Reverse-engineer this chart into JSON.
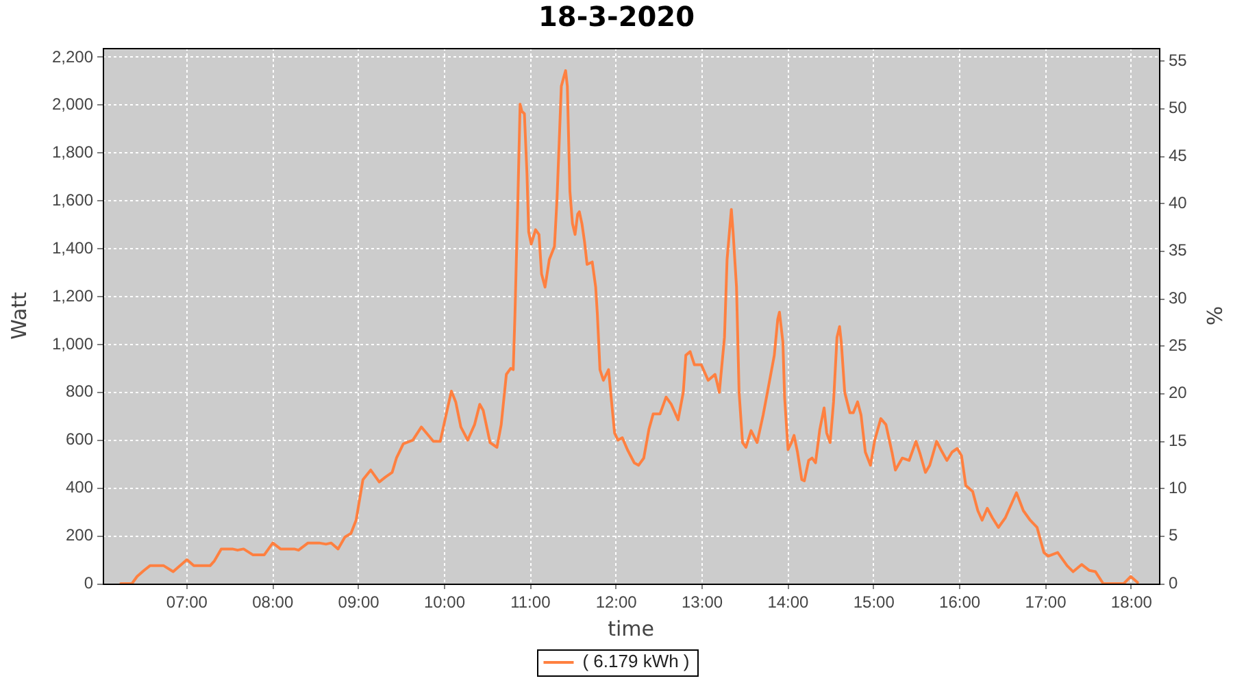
{
  "chart_data": {
    "type": "line",
    "title": "18-3-2020",
    "xlabel": "time",
    "ylabel": "Watt",
    "y2label": "%",
    "x": [
      6.23,
      6.36,
      6.42,
      6.5,
      6.57,
      6.73,
      6.84,
      6.92,
      7.0,
      7.08,
      7.27,
      7.32,
      7.4,
      7.53,
      7.59,
      7.66,
      7.77,
      7.9,
      8.0,
      8.09,
      8.25,
      8.3,
      8.41,
      8.54,
      8.62,
      8.68,
      8.76,
      8.84,
      8.91,
      8.97,
      9.05,
      9.14,
      9.24,
      9.31,
      9.39,
      9.44,
      9.52,
      9.63,
      9.73,
      9.87,
      9.95,
      10.03,
      10.08,
      10.13,
      10.19,
      10.27,
      10.35,
      10.41,
      10.45,
      10.53,
      10.61,
      10.66,
      10.72,
      10.77,
      10.8,
      10.82,
      10.85,
      10.88,
      10.9,
      10.93,
      10.96,
      10.98,
      11.01,
      11.06,
      11.1,
      11.13,
      11.17,
      11.22,
      11.28,
      11.31,
      11.36,
      11.39,
      11.41,
      11.43,
      11.46,
      11.49,
      11.52,
      11.55,
      11.57,
      11.6,
      11.63,
      11.66,
      11.72,
      11.76,
      11.78,
      11.81,
      11.85,
      11.91,
      11.94,
      11.98,
      12.02,
      12.07,
      12.13,
      12.21,
      12.26,
      12.32,
      12.38,
      12.43,
      12.51,
      12.58,
      12.64,
      12.72,
      12.78,
      12.81,
      12.86,
      12.91,
      12.99,
      13.07,
      13.15,
      13.2,
      13.26,
      13.29,
      13.34,
      13.36,
      13.4,
      13.43,
      13.47,
      13.51,
      13.57,
      13.64,
      13.71,
      13.76,
      13.84,
      13.88,
      13.9,
      13.94,
      13.96,
      14.0,
      14.04,
      14.07,
      14.11,
      14.16,
      14.19,
      14.24,
      14.28,
      14.32,
      14.37,
      14.42,
      14.45,
      14.49,
      14.53,
      14.57,
      14.6,
      14.62,
      14.66,
      14.72,
      14.76,
      14.81,
      14.85,
      14.9,
      14.96,
      15.01,
      15.08,
      15.14,
      15.21,
      15.25,
      15.33,
      15.41,
      15.49,
      15.54,
      15.6,
      15.65,
      15.73,
      15.78,
      15.85,
      15.91,
      15.97,
      16.02,
      16.07,
      16.15,
      16.21,
      16.26,
      16.32,
      16.38,
      16.45,
      16.53,
      16.61,
      16.66,
      16.74,
      16.82,
      16.9,
      16.98,
      17.03,
      17.14,
      17.25,
      17.32,
      17.42,
      17.51,
      17.58,
      17.67,
      17.91,
      17.99,
      18.07
    ],
    "series": [
      {
        "name": "( 6.179 kWh )",
        "color": "#ff8040",
        "values": [
          0,
          0,
          30,
          55,
          75,
          75,
          50,
          75,
          100,
          75,
          75,
          95,
          145,
          145,
          140,
          145,
          120,
          120,
          170,
          145,
          145,
          140,
          170,
          170,
          165,
          170,
          145,
          195,
          210,
          265,
          435,
          475,
          425,
          445,
          465,
          525,
          585,
          600,
          655,
          595,
          595,
          725,
          805,
          760,
          655,
          600,
          665,
          750,
          725,
          590,
          570,
          665,
          875,
          900,
          895,
          1125,
          1545,
          2005,
          1975,
          1965,
          1715,
          1470,
          1420,
          1480,
          1460,
          1295,
          1240,
          1355,
          1410,
          1610,
          2080,
          2120,
          2145,
          2080,
          1640,
          1505,
          1460,
          1545,
          1555,
          1505,
          1430,
          1335,
          1345,
          1240,
          1125,
          895,
          850,
          895,
          780,
          630,
          600,
          610,
          560,
          505,
          495,
          525,
          645,
          710,
          710,
          780,
          750,
          685,
          800,
          955,
          970,
          915,
          915,
          850,
          875,
          800,
          1030,
          1355,
          1565,
          1470,
          1240,
          800,
          590,
          570,
          640,
          590,
          705,
          800,
          955,
          1105,
          1135,
          1010,
          780,
          560,
          590,
          620,
          550,
          435,
          430,
          515,
          525,
          505,
          645,
          735,
          630,
          590,
          760,
          1030,
          1075,
          1010,
          800,
          715,
          715,
          760,
          705,
          550,
          495,
          600,
          690,
          665,
          550,
          475,
          525,
          515,
          595,
          540,
          465,
          495,
          595,
          560,
          515,
          550,
          565,
          535,
          410,
          385,
          305,
          265,
          315,
          275,
          235,
          275,
          340,
          380,
          305,
          265,
          235,
          130,
          115,
          130,
          75,
          50,
          80,
          55,
          50,
          0,
          0,
          30,
          5
        ]
      }
    ],
    "xlim": [
      6.02,
      18.32
    ],
    "xticks": [
      {
        "value": 7,
        "label": "07:00"
      },
      {
        "value": 8,
        "label": "08:00"
      },
      {
        "value": 9,
        "label": "09:00"
      },
      {
        "value": 10,
        "label": "10:00"
      },
      {
        "value": 11,
        "label": "11:00"
      },
      {
        "value": 12,
        "label": "12:00"
      },
      {
        "value": 13,
        "label": "13:00"
      },
      {
        "value": 14,
        "label": "14:00"
      },
      {
        "value": 15,
        "label": "15:00"
      },
      {
        "value": 16,
        "label": "16:00"
      },
      {
        "value": 17,
        "label": "17:00"
      },
      {
        "value": 18,
        "label": "18:00"
      }
    ],
    "ylim": [
      0,
      2240
    ],
    "yticks": [
      0,
      200,
      400,
      600,
      800,
      {
        "value": 1000,
        "label": "1,000"
      },
      {
        "value": 1200,
        "label": "1,200"
      },
      {
        "value": 1400,
        "label": "1,400"
      },
      {
        "value": 1600,
        "label": "1,600"
      },
      {
        "value": 1800,
        "label": "1,800"
      },
      {
        "value": 2000,
        "label": "2,000"
      },
      {
        "value": 2200,
        "label": "2,200"
      }
    ],
    "y2lim": [
      0,
      56.4
    ],
    "y2ticks": [
      0,
      5,
      10,
      15,
      20,
      25,
      30,
      35,
      40,
      45,
      50,
      55
    ],
    "grid": true,
    "legend": "bottom",
    "marker": "none",
    "line_style": "solid"
  }
}
